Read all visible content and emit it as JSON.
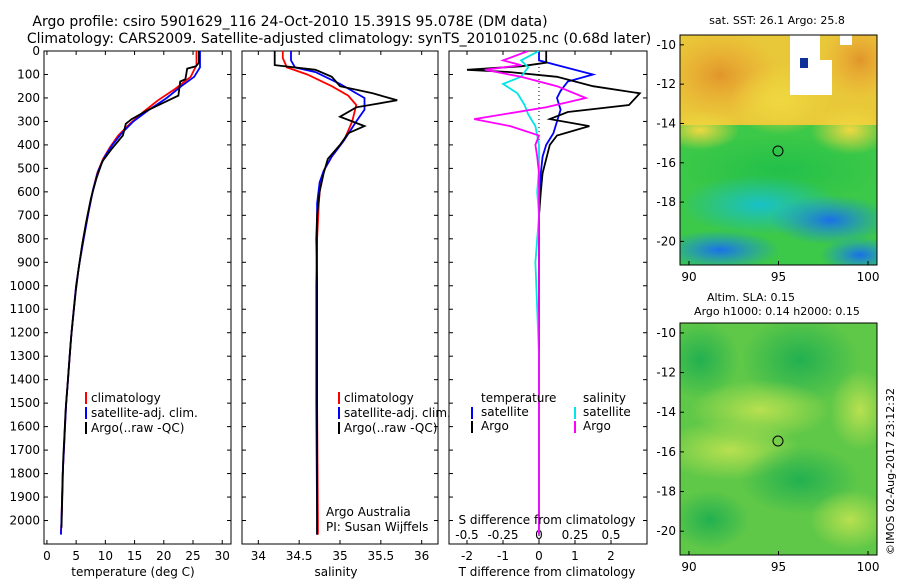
{
  "title_line1": "Argo profile: csiro 5901629_116 24-Oct-2010 15.391S 95.078E (DM data)",
  "title_line2": "Climatology: CARS2009. Satellite-adjusted climatology: synTS_20101025.nc (0.68d later)",
  "side_label": "©IMOS 02-Aug-2017 23:12:32",
  "colors": {
    "clim": "#ff0000",
    "sat": "#0000ff",
    "argo": "#000000",
    "sat_s": "#00e5e5",
    "argo_s": "#ff00ff"
  },
  "chart_data": [
    {
      "id": "temperature",
      "type": "line",
      "xlabel": "temperature (deg C)",
      "xlim": [
        -0.5,
        31.5
      ],
      "ylim": [
        0,
        2100
      ],
      "yticks": [
        0,
        100,
        200,
        300,
        400,
        500,
        600,
        700,
        800,
        900,
        1000,
        1100,
        1200,
        1300,
        1400,
        1500,
        1600,
        1700,
        1800,
        1900,
        2000
      ],
      "xticks": [
        0,
        5,
        10,
        15,
        20,
        25,
        30
      ],
      "legend": [
        "climatology",
        "satellite-adj. clim.",
        "Argo(..raw -QC)"
      ],
      "series": [
        {
          "name": "climatology",
          "color": "#ff0000",
          "points": [
            [
              25.6,
              0
            ],
            [
              25.6,
              60
            ],
            [
              24.6,
              110
            ],
            [
              22.0,
              160
            ],
            [
              19.0,
              210
            ],
            [
              16.5,
              260
            ],
            [
              14.2,
              310
            ],
            [
              12.2,
              360
            ],
            [
              10.8,
              410
            ],
            [
              9.6,
              460
            ],
            [
              8.6,
              520
            ],
            [
              7.8,
              600
            ],
            [
              7.0,
              700
            ],
            [
              6.2,
              800
            ],
            [
              5.6,
              900
            ],
            [
              5.0,
              1000
            ],
            [
              4.6,
              1100
            ],
            [
              4.2,
              1200
            ],
            [
              3.9,
              1300
            ],
            [
              3.6,
              1400
            ],
            [
              3.3,
              1500
            ],
            [
              3.1,
              1600
            ],
            [
              2.9,
              1700
            ],
            [
              2.7,
              1800
            ],
            [
              2.6,
              1900
            ],
            [
              2.5,
              2000
            ],
            [
              2.4,
              2060
            ]
          ]
        },
        {
          "name": "satellite-adj. clim.",
          "color": "#0000ff",
          "points": [
            [
              26.2,
              0
            ],
            [
              26.2,
              70
            ],
            [
              25.2,
              110
            ],
            [
              23.0,
              150
            ],
            [
              20.5,
              200
            ],
            [
              17.5,
              250
            ],
            [
              14.8,
              300
            ],
            [
              12.8,
              350
            ],
            [
              11.2,
              400
            ],
            [
              9.9,
              450
            ],
            [
              8.8,
              510
            ],
            [
              7.9,
              590
            ],
            [
              7.1,
              690
            ],
            [
              6.3,
              800
            ],
            [
              5.6,
              900
            ],
            [
              5.0,
              1000
            ],
            [
              4.6,
              1100
            ],
            [
              4.2,
              1200
            ],
            [
              3.9,
              1300
            ],
            [
              3.6,
              1400
            ],
            [
              3.3,
              1500
            ],
            [
              3.1,
              1600
            ],
            [
              2.9,
              1700
            ],
            [
              2.7,
              1800
            ],
            [
              2.6,
              1900
            ],
            [
              2.5,
              2000
            ],
            [
              2.4,
              2060
            ]
          ]
        },
        {
          "name": "Argo(..raw -QC)",
          "color": "#000000",
          "points": [
            [
              26.0,
              0
            ],
            [
              26.0,
              50
            ],
            [
              25.5,
              65
            ],
            [
              24.0,
              75
            ],
            [
              23.7,
              120
            ],
            [
              22.8,
              130
            ],
            [
              22.5,
              190
            ],
            [
              20.0,
              220
            ],
            [
              17.0,
              255
            ],
            [
              14.5,
              290
            ],
            [
              13.5,
              310
            ],
            [
              13.0,
              360
            ],
            [
              11.0,
              420
            ],
            [
              9.5,
              470
            ],
            [
              8.5,
              540
            ],
            [
              7.5,
              630
            ],
            [
              6.7,
              730
            ],
            [
              6.0,
              830
            ],
            [
              5.4,
              930
            ],
            [
              4.9,
              1030
            ],
            [
              4.5,
              1130
            ],
            [
              4.1,
              1230
            ],
            [
              3.8,
              1330
            ],
            [
              3.5,
              1430
            ],
            [
              3.2,
              1530
            ],
            [
              3.0,
              1630
            ],
            [
              2.8,
              1730
            ],
            [
              2.7,
              1830
            ],
            [
              2.6,
              1930
            ],
            [
              2.5,
              2030
            ]
          ]
        }
      ]
    },
    {
      "id": "salinity",
      "type": "line",
      "xlabel": "salinity",
      "xlim": [
        33.8,
        36.2
      ],
      "ylim": [
        0,
        2100
      ],
      "xticks": [
        34,
        34.5,
        35,
        35.5,
        36
      ],
      "legend": [
        "climatology",
        "satellite-adj. clim.",
        "Argo(..raw -QC)"
      ],
      "annotations": [
        "Argo Australia",
        "PI: Susan Wijffels"
      ],
      "series": [
        {
          "name": "climatology",
          "color": "#ff0000",
          "points": [
            [
              34.3,
              0
            ],
            [
              34.3,
              30
            ],
            [
              34.35,
              70
            ],
            [
              34.6,
              100
            ],
            [
              34.9,
              150
            ],
            [
              35.1,
              190
            ],
            [
              35.2,
              230
            ],
            [
              35.15,
              300
            ],
            [
              35.05,
              380
            ],
            [
              34.9,
              450
            ],
            [
              34.8,
              510
            ],
            [
              34.76,
              560
            ],
            [
              34.74,
              650
            ],
            [
              34.72,
              800
            ],
            [
              34.72,
              1000
            ],
            [
              34.72,
              1500
            ],
            [
              34.73,
              2000
            ],
            [
              34.73,
              2060
            ]
          ]
        },
        {
          "name": "satellite-adj. clim.",
          "color": "#0000ff",
          "points": [
            [
              34.4,
              0
            ],
            [
              34.4,
              40
            ],
            [
              34.45,
              70
            ],
            [
              34.7,
              90
            ],
            [
              35.0,
              140
            ],
            [
              35.3,
              200
            ],
            [
              35.3,
              250
            ],
            [
              35.2,
              300
            ],
            [
              35.05,
              380
            ],
            [
              34.9,
              450
            ],
            [
              34.8,
              510
            ],
            [
              34.75,
              560
            ],
            [
              34.72,
              650
            ],
            [
              34.72,
              800
            ],
            [
              34.71,
              1000
            ],
            [
              34.71,
              1500
            ],
            [
              34.72,
              2000
            ],
            [
              34.72,
              2060
            ]
          ]
        },
        {
          "name": "Argo(..raw -QC)",
          "color": "#000000",
          "points": [
            [
              34.2,
              0
            ],
            [
              34.2,
              60
            ],
            [
              34.7,
              80
            ],
            [
              34.9,
              110
            ],
            [
              35.0,
              150
            ],
            [
              35.4,
              180
            ],
            [
              35.7,
              210
            ],
            [
              35.2,
              240
            ],
            [
              35.0,
              280
            ],
            [
              35.3,
              320
            ],
            [
              35.1,
              350
            ],
            [
              35.0,
              400
            ],
            [
              34.85,
              460
            ],
            [
              34.8,
              520
            ],
            [
              34.75,
              600
            ],
            [
              34.72,
              700
            ],
            [
              34.71,
              800
            ],
            [
              34.72,
              1000
            ],
            [
              34.72,
              1500
            ],
            [
              34.72,
              2000
            ],
            [
              34.72,
              2060
            ]
          ]
        }
      ]
    },
    {
      "id": "differences",
      "type": "line",
      "xlabel": "T difference from climatology",
      "xlabel_top": "S difference from climatology",
      "xlim": [
        -2.5,
        3.0
      ],
      "ylim": [
        0,
        2100
      ],
      "xticks": [
        -2,
        -1,
        0,
        1,
        2
      ],
      "xticks_s_labels": [
        "-0.5",
        "-0.25",
        "0",
        "0.25",
        "0.5"
      ],
      "xticks_s_pos": [
        -2,
        -1,
        0,
        1,
        2
      ],
      "legend_temperature": {
        "head": "temperature",
        "items": [
          "satellite",
          "Argo"
        ]
      },
      "legend_salinity": {
        "head": "salinity",
        "items": [
          "satellite",
          "Argo"
        ]
      },
      "series": [
        {
          "name": "T satellite",
          "color": "#0000ff",
          "points": [
            [
              0,
              0
            ],
            [
              0,
              40
            ],
            [
              0.5,
              60
            ],
            [
              1.5,
              100
            ],
            [
              0.8,
              130
            ],
            [
              0.6,
              170
            ],
            [
              0.5,
              200
            ],
            [
              0.6,
              250
            ],
            [
              0.5,
              300
            ],
            [
              0.4,
              350
            ],
            [
              0.2,
              400
            ],
            [
              0.1,
              450
            ],
            [
              0.05,
              520
            ],
            [
              0,
              700
            ],
            [
              0,
              1000
            ],
            [
              0,
              1500
            ],
            [
              0,
              2000
            ],
            [
              0,
              2060
            ]
          ]
        },
        {
          "name": "T Argo",
          "color": "#000000",
          "points": [
            [
              0.2,
              0
            ],
            [
              0.2,
              50
            ],
            [
              -0.5,
              65
            ],
            [
              -2.0,
              80
            ],
            [
              -0.8,
              90
            ],
            [
              0.5,
              110
            ],
            [
              1.5,
              150
            ],
            [
              2.8,
              180
            ],
            [
              2.5,
              230
            ],
            [
              0.8,
              260
            ],
            [
              0.3,
              290
            ],
            [
              1.4,
              320
            ],
            [
              0.5,
              360
            ],
            [
              0.3,
              400
            ],
            [
              0.2,
              460
            ],
            [
              0.1,
              520
            ],
            [
              0.05,
              600
            ],
            [
              0,
              700
            ],
            [
              0,
              1000
            ],
            [
              0,
              1500
            ],
            [
              0,
              2000
            ],
            [
              0,
              2060
            ]
          ]
        },
        {
          "name": "S satellite",
          "color": "#00e5e5",
          "points": [
            [
              0,
              0
            ],
            [
              -0.5,
              40
            ],
            [
              -0.3,
              70
            ],
            [
              -0.5,
              110
            ],
            [
              -1.0,
              140
            ],
            [
              -0.6,
              180
            ],
            [
              -0.4,
              230
            ],
            [
              -0.3,
              270
            ],
            [
              -0.1,
              320
            ],
            [
              0,
              400
            ],
            [
              0,
              500
            ],
            [
              -0.05,
              600
            ],
            [
              0,
              700
            ],
            [
              -0.1,
              900
            ],
            [
              -0.05,
              1100
            ],
            [
              0,
              1300
            ],
            [
              0,
              1500
            ],
            [
              0,
              2000
            ],
            [
              0,
              2060
            ]
          ]
        },
        {
          "name": "S Argo",
          "color": "#ff00ff",
          "points": [
            [
              -0.3,
              0
            ],
            [
              -1.0,
              40
            ],
            [
              -0.5,
              60
            ],
            [
              -1.5,
              80
            ],
            [
              -0.5,
              110
            ],
            [
              0.5,
              150
            ],
            [
              1.3,
              200
            ],
            [
              0.2,
              240
            ],
            [
              -1.8,
              290
            ],
            [
              -0.8,
              320
            ],
            [
              0,
              360
            ],
            [
              -0.1,
              400
            ],
            [
              -0.05,
              450
            ],
            [
              0,
              520
            ],
            [
              0,
              2060
            ]
          ]
        }
      ]
    }
  ],
  "maps": [
    {
      "id": "sst-map",
      "title": "sat. SST: 26.1  Argo: 25.8",
      "xticks": [
        "90",
        "95",
        "100"
      ],
      "yticks": [
        "-10",
        "-12",
        "-14",
        "-16",
        "-18",
        "-20"
      ]
    },
    {
      "id": "sla-map",
      "title_line1": "Altim. SLA: 0.15",
      "title_line2": "Argo h1000: 0.14  h2000: 0.15",
      "xticks": [
        "90",
        "95",
        "100"
      ],
      "yticks": [
        "-10",
        "-12",
        "-14",
        "-16",
        "-18",
        "-20"
      ]
    }
  ]
}
